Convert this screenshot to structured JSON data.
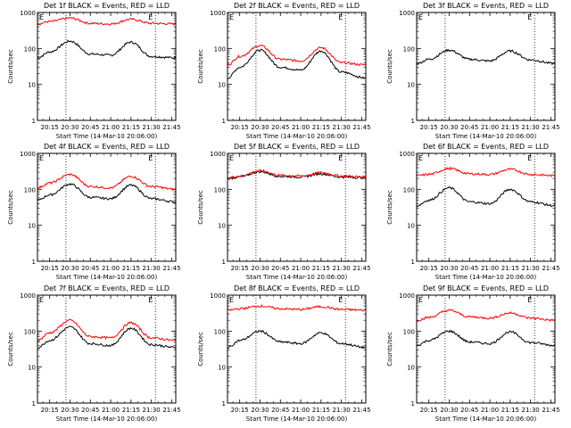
{
  "panel_labels": {
    "ylabel": "Counts/sec",
    "start_time": "Start Time (14-Mar-10 20:06:00)",
    "marker_left": "E",
    "marker_right": "E"
  },
  "colors": {
    "events": "#000000",
    "lld": "#ff0000",
    "axis": "#000000"
  },
  "chart_data": [
    {
      "type": "line",
      "title": "Det 1f BLACK = Events, RED = LLD",
      "ylabel": "Counts/sec",
      "xlabel": "Start Time (14-Mar-10 20:06:00)",
      "yscale": "log",
      "ylim": [
        1,
        1000
      ],
      "xlim": [
        "20:06",
        "21:48"
      ],
      "x_ticks": [
        "20:15",
        "20:30",
        "20:45",
        "21:00",
        "21:15",
        "21:30",
        "21:45"
      ],
      "y_ticks": [
        "1",
        "10",
        "100",
        "1000"
      ],
      "vlines": [
        "20:27",
        "21:33"
      ],
      "x": [
        "20:06",
        "20:15",
        "20:30",
        "20:45",
        "21:00",
        "21:15",
        "21:30",
        "21:48"
      ],
      "series": [
        {
          "name": "Events",
          "values": [
            55,
            80,
            160,
            70,
            65,
            150,
            60,
            55
          ]
        },
        {
          "name": "LLD",
          "values": [
            480,
            560,
            700,
            500,
            480,
            650,
            500,
            480
          ]
        }
      ]
    },
    {
      "type": "line",
      "title": "Det 2f BLACK = Events, RED = LLD",
      "ylabel": "Counts/sec",
      "xlabel": "Start Time (14-Mar-10 20:06:00)",
      "yscale": "log",
      "ylim": [
        1,
        1000
      ],
      "xlim": [
        "20:06",
        "21:48"
      ],
      "x_ticks": [
        "20:15",
        "20:30",
        "20:45",
        "21:00",
        "21:15",
        "21:30",
        "21:45"
      ],
      "y_ticks": [
        "1",
        "10",
        "100",
        "1000"
      ],
      "vlines": [
        "20:27",
        "21:33"
      ],
      "x": [
        "20:06",
        "20:15",
        "20:30",
        "20:45",
        "21:00",
        "21:15",
        "21:30",
        "21:48"
      ],
      "series": [
        {
          "name": "Events",
          "values": [
            15,
            30,
            90,
            30,
            25,
            85,
            22,
            15
          ]
        },
        {
          "name": "LLD",
          "values": [
            35,
            60,
            120,
            50,
            45,
            105,
            40,
            35
          ]
        }
      ]
    },
    {
      "type": "line",
      "title": "Det 3f BLACK = Events, RED = LLD",
      "ylabel": "Counts/sec",
      "xlabel": "Start Time (14-Mar-10 20:06:00)",
      "yscale": "log",
      "ylim": [
        1,
        1000
      ],
      "xlim": [
        "20:06",
        "21:48"
      ],
      "x_ticks": [
        "20:15",
        "20:30",
        "20:45",
        "21:00",
        "21:15",
        "21:30",
        "21:45"
      ],
      "y_ticks": [
        "1",
        "10",
        "100",
        "1000"
      ],
      "vlines": [
        "20:27",
        "21:33"
      ],
      "x": [
        "20:06",
        "20:15",
        "20:30",
        "20:45",
        "21:00",
        "21:15",
        "21:30",
        "21:48"
      ],
      "series": [
        {
          "name": "Events",
          "values": [
            38,
            50,
            90,
            50,
            45,
            85,
            48,
            38
          ]
        }
      ]
    },
    {
      "type": "line",
      "title": "Det 4f BLACK = Events, RED = LLD",
      "ylabel": "Counts/sec",
      "xlabel": "Start Time (14-Mar-10 20:06:00)",
      "yscale": "log",
      "ylim": [
        1,
        1000
      ],
      "xlim": [
        "20:06",
        "21:48"
      ],
      "x_ticks": [
        "20:15",
        "20:30",
        "20:45",
        "21:00",
        "21:15",
        "21:30",
        "21:45"
      ],
      "y_ticks": [
        "1",
        "10",
        "100",
        "1000"
      ],
      "vlines": [
        "20:27",
        "21:33"
      ],
      "x": [
        "20:06",
        "20:15",
        "20:30",
        "20:45",
        "21:00",
        "21:15",
        "21:30",
        "21:48"
      ],
      "series": [
        {
          "name": "Events",
          "values": [
            50,
            70,
            140,
            60,
            55,
            130,
            55,
            45
          ]
        },
        {
          "name": "LLD",
          "values": [
            110,
            150,
            260,
            120,
            110,
            230,
            120,
            100
          ]
        }
      ]
    },
    {
      "type": "line",
      "title": "Det 5f BLACK = Events, RED = LLD",
      "ylabel": "Counts/sec",
      "xlabel": "Start Time (14-Mar-10 20:06:00)",
      "yscale": "log",
      "ylim": [
        1,
        1000
      ],
      "xlim": [
        "20:06",
        "21:48"
      ],
      "x_ticks": [
        "20:15",
        "20:30",
        "20:45",
        "21:00",
        "21:15",
        "21:30",
        "21:45"
      ],
      "y_ticks": [
        "1",
        "10",
        "100",
        "1000"
      ],
      "vlines": [
        "20:27",
        "21:33"
      ],
      "x": [
        "20:06",
        "20:15",
        "20:30",
        "20:45",
        "21:00",
        "21:15",
        "21:30",
        "21:48"
      ],
      "series": [
        {
          "name": "Events",
          "values": [
            200,
            220,
            310,
            230,
            220,
            270,
            220,
            210
          ]
        },
        {
          "name": "LLD",
          "values": [
            210,
            235,
            330,
            245,
            235,
            290,
            235,
            220
          ]
        }
      ]
    },
    {
      "type": "line",
      "title": "Det 6f BLACK = Events, RED = LLD",
      "ylabel": "Counts/sec",
      "xlabel": "Start Time (14-Mar-10 20:06:00)",
      "yscale": "log",
      "ylim": [
        1,
        1000
      ],
      "xlim": [
        "20:06",
        "21:48"
      ],
      "x_ticks": [
        "20:15",
        "20:30",
        "20:45",
        "21:00",
        "21:15",
        "21:30",
        "21:45"
      ],
      "y_ticks": [
        "1",
        "10",
        "100",
        "1000"
      ],
      "vlines": [
        "20:27",
        "21:33"
      ],
      "x": [
        "20:06",
        "20:15",
        "20:30",
        "20:45",
        "21:00",
        "21:15",
        "21:30",
        "21:48"
      ],
      "series": [
        {
          "name": "Events",
          "values": [
            35,
            50,
            110,
            45,
            40,
            100,
            45,
            35
          ]
        },
        {
          "name": "LLD",
          "values": [
            240,
            260,
            380,
            270,
            260,
            360,
            260,
            240
          ]
        }
      ]
    },
    {
      "type": "line",
      "title": "Det 7f BLACK = Events, RED = LLD",
      "ylabel": "Counts/sec",
      "xlabel": "Start Time (14-Mar-10 20:06:00)",
      "yscale": "log",
      "ylim": [
        1,
        1000
      ],
      "xlim": [
        "20:06",
        "21:48"
      ],
      "x_ticks": [
        "20:15",
        "20:30",
        "20:45",
        "21:00",
        "21:15",
        "21:30",
        "21:45"
      ],
      "y_ticks": [
        "1",
        "10",
        "100",
        "1000"
      ],
      "vlines": [
        "20:27",
        "21:33"
      ],
      "x": [
        "20:06",
        "20:15",
        "20:30",
        "20:45",
        "21:00",
        "21:15",
        "21:30",
        "21:48"
      ],
      "series": [
        {
          "name": "Events",
          "values": [
            35,
            55,
            130,
            45,
            40,
            120,
            42,
            35
          ]
        },
        {
          "name": "LLD",
          "values": [
            55,
            90,
            200,
            70,
            65,
            170,
            65,
            55
          ]
        }
      ]
    },
    {
      "type": "line",
      "title": "Det 8f BLACK = Events, RED = LLD",
      "ylabel": "Counts/sec",
      "xlabel": "Start Time (14-Mar-10 20:06:00)",
      "yscale": "log",
      "ylim": [
        1,
        1000
      ],
      "xlim": [
        "20:06",
        "21:48"
      ],
      "x_ticks": [
        "20:15",
        "20:30",
        "20:45",
        "21:00",
        "21:15",
        "21:30",
        "21:45"
      ],
      "y_ticks": [
        "1",
        "10",
        "100",
        "1000"
      ],
      "vlines": [
        "20:27",
        "21:33"
      ],
      "x": [
        "20:06",
        "20:15",
        "20:30",
        "20:45",
        "21:00",
        "21:15",
        "21:30",
        "21:48"
      ],
      "series": [
        {
          "name": "Events",
          "values": [
            35,
            55,
            100,
            50,
            45,
            90,
            45,
            35
          ]
        },
        {
          "name": "LLD",
          "values": [
            380,
            420,
            500,
            420,
            400,
            480,
            400,
            380
          ]
        }
      ]
    },
    {
      "type": "line",
      "title": "Det 9f BLACK = Events, RED = LLD",
      "ylabel": "Counts/sec",
      "xlabel": "Start Time (14-Mar-10 20:06:00)",
      "yscale": "log",
      "ylim": [
        1,
        1000
      ],
      "xlim": [
        "20:06",
        "21:48"
      ],
      "x_ticks": [
        "20:15",
        "20:30",
        "20:45",
        "21:00",
        "21:15",
        "21:30",
        "21:45"
      ],
      "y_ticks": [
        "1",
        "10",
        "100",
        "1000"
      ],
      "vlines": [
        "20:27",
        "21:33"
      ],
      "x": [
        "20:06",
        "20:15",
        "20:30",
        "20:45",
        "21:00",
        "21:15",
        "21:30",
        "21:48"
      ],
      "series": [
        {
          "name": "Events",
          "values": [
            40,
            55,
            100,
            50,
            45,
            95,
            48,
            40
          ]
        },
        {
          "name": "LLD",
          "values": [
            200,
            240,
            380,
            250,
            230,
            320,
            230,
            200
          ]
        }
      ]
    }
  ]
}
